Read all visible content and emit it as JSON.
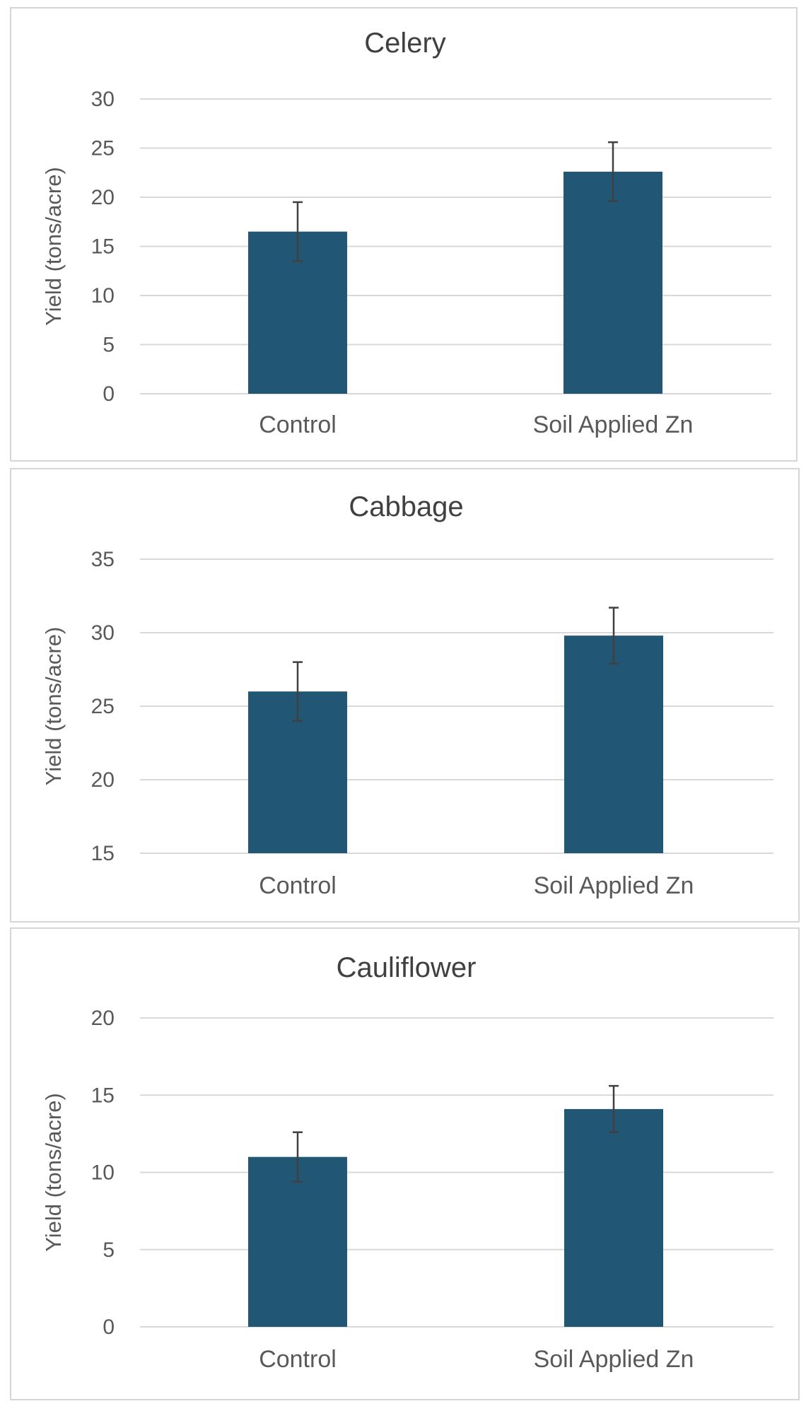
{
  "chart_data": [
    {
      "type": "bar",
      "title": "Celery",
      "categories": [
        "Control",
        "Soil Applied Zn"
      ],
      "values": [
        16.5,
        22.6
      ],
      "errors": [
        3.0,
        3.0
      ],
      "xlabel": "",
      "ylabel": "Yield (tons/acre)",
      "ylim": [
        0,
        30
      ],
      "yticks": [
        0,
        5,
        10,
        15,
        20,
        25,
        30
      ],
      "bar_color": "#225675",
      "grid": true,
      "legend": "none"
    },
    {
      "type": "bar",
      "title": "Cabbage",
      "categories": [
        "Control",
        "Soil Applied Zn"
      ],
      "values": [
        26.0,
        29.8
      ],
      "errors": [
        2.0,
        1.9
      ],
      "xlabel": "",
      "ylabel": "Yield (tons/acre)",
      "ylim": [
        15,
        35
      ],
      "yticks": [
        15,
        20,
        25,
        30,
        35
      ],
      "bar_color": "#225675",
      "grid": true,
      "legend": "none"
    },
    {
      "type": "bar",
      "title": "Cauliflower",
      "categories": [
        "Control",
        "Soil Applied Zn"
      ],
      "values": [
        11.0,
        14.1
      ],
      "errors": [
        1.6,
        1.5
      ],
      "xlabel": "",
      "ylabel": "Yield (tons/acre)",
      "ylim": [
        0,
        20
      ],
      "yticks": [
        0,
        5,
        10,
        15,
        20
      ],
      "bar_color": "#225675",
      "grid": true,
      "legend": "none"
    }
  ]
}
